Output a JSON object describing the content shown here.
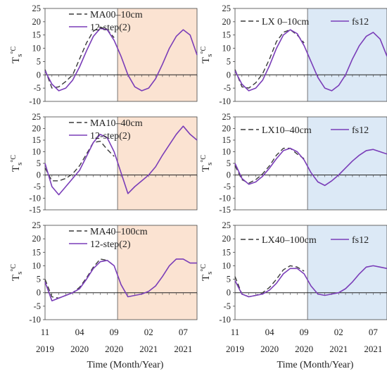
{
  "figure": {
    "xlabel": "Time (Month/Year)",
    "ylabel_main": "T",
    "ylabel_sub": "s",
    "ylabel_unit": "°C",
    "x_tick_months": [
      "11",
      "04",
      "09",
      "02",
      "07"
    ],
    "x_tick_years": [
      "2019",
      "2020",
      "2020",
      "2021",
      "2021"
    ]
  },
  "colors": {
    "observed": "#3a3a3a",
    "simulated": "#7a3db8",
    "shade_left": "#fbe3d2",
    "shade_right": "#dce9f6"
  },
  "chart_data": [
    {
      "type": "line",
      "panel": "left-1",
      "x_unit": "month_index_from_2019_11",
      "xlim": [
        0,
        22
      ],
      "ylim": [
        -10,
        25
      ],
      "yticks": [
        -10,
        -5,
        0,
        5,
        10,
        15,
        20,
        25
      ],
      "shade_from_x": 10.5,
      "series": [
        {
          "name": "MA00–10cm",
          "style": "dashed",
          "x": [
            0,
            1,
            2,
            3,
            4,
            5,
            6,
            7,
            8,
            9,
            10
          ],
          "y": [
            2,
            -5,
            -4.5,
            -2.5,
            0,
            6,
            12,
            16.5,
            18,
            17,
            14
          ]
        },
        {
          "name": "12-step(2)",
          "style": "solid",
          "x": [
            0,
            1,
            2,
            3,
            4,
            5,
            6,
            7,
            8,
            9,
            10,
            11,
            12,
            13,
            14,
            15,
            16,
            17,
            18,
            19,
            20,
            21,
            22
          ],
          "y": [
            1.5,
            -3.5,
            -6,
            -5,
            -2,
            3,
            9,
            14.5,
            17.5,
            17,
            13,
            7,
            0,
            -4.5,
            -6,
            -5,
            -1.5,
            4,
            10,
            14.5,
            17,
            15,
            7.5
          ]
        }
      ]
    },
    {
      "type": "line",
      "panel": "right-1",
      "x_unit": "month_index_from_2019_11",
      "xlim": [
        0,
        22
      ],
      "ylim": [
        -10,
        25
      ],
      "yticks": [
        -10,
        -5,
        0,
        5,
        10,
        15,
        20,
        25
      ],
      "shade_from_x": 10.5,
      "series": [
        {
          "name": "LX 0–10cm",
          "style": "dashed",
          "x": [
            0,
            1,
            2,
            3,
            4,
            5,
            6,
            7,
            8,
            9,
            10
          ],
          "y": [
            2,
            -4.5,
            -5,
            -3,
            0.5,
            6,
            12.5,
            16,
            17,
            15,
            12
          ]
        },
        {
          "name": "fs12",
          "style": "solid",
          "x": [
            0,
            1,
            2,
            3,
            4,
            5,
            6,
            7,
            8,
            9,
            10,
            11,
            12,
            13,
            14,
            15,
            16,
            17,
            18,
            19,
            20,
            21,
            22
          ],
          "y": [
            1.5,
            -3.5,
            -6,
            -5,
            -2,
            3.5,
            10,
            15,
            17,
            15.5,
            11,
            5,
            -1,
            -5,
            -6,
            -4,
            0,
            6,
            11,
            14.5,
            16,
            13.5,
            7
          ]
        }
      ]
    },
    {
      "type": "line",
      "panel": "left-2",
      "x_unit": "month_index_from_2019_11",
      "xlim": [
        0,
        22
      ],
      "ylim": [
        -15,
        25
      ],
      "yticks": [
        -15,
        -10,
        -5,
        0,
        5,
        10,
        15,
        20,
        25
      ],
      "shade_from_x": 10.5,
      "series": [
        {
          "name": "MA10–40cm",
          "style": "dashed",
          "x": [
            0,
            1,
            2,
            3,
            4,
            5,
            6,
            7,
            8,
            9,
            10
          ],
          "y": [
            3,
            -2.5,
            -2.5,
            -1.5,
            0.5,
            4,
            9,
            14,
            14.5,
            11,
            8
          ]
        },
        {
          "name": "12-step(2)",
          "style": "solid",
          "x": [
            0,
            1,
            2,
            3,
            4,
            5,
            6,
            7,
            8,
            9,
            10,
            11,
            12,
            13,
            14,
            15,
            16,
            17,
            18,
            19,
            20,
            21,
            22
          ],
          "y": [
            5,
            -5,
            -8.5,
            -5,
            -1.5,
            2,
            8,
            14,
            17.5,
            16,
            10,
            1,
            -8,
            -5,
            -2.5,
            0,
            3.5,
            8.5,
            13,
            17.5,
            21,
            17.5,
            15
          ]
        }
      ]
    },
    {
      "type": "line",
      "panel": "right-2",
      "x_unit": "month_index_from_2019_11",
      "xlim": [
        0,
        22
      ],
      "ylim": [
        -15,
        25
      ],
      "yticks": [
        -15,
        -10,
        -5,
        0,
        5,
        10,
        15,
        20,
        25
      ],
      "shade_from_x": 10.5,
      "series": [
        {
          "name": "LX10–40cm",
          "style": "dashed",
          "x": [
            0,
            1,
            2,
            3,
            4,
            5,
            6,
            7,
            8,
            9,
            10
          ],
          "y": [
            4,
            -2,
            -3.5,
            -2,
            0.5,
            4,
            8.5,
            11.5,
            11.5,
            9,
            7
          ]
        },
        {
          "name": "fs12",
          "style": "solid",
          "x": [
            0,
            1,
            2,
            3,
            4,
            5,
            6,
            7,
            8,
            9,
            10,
            11,
            12,
            13,
            14,
            15,
            16,
            17,
            18,
            19,
            20,
            21,
            22
          ],
          "y": [
            5,
            -1.5,
            -4,
            -3,
            -0.5,
            3,
            7,
            10.5,
            11.5,
            10,
            6.5,
            1,
            -3,
            -4.5,
            -2.5,
            0,
            3,
            6,
            8.5,
            10.5,
            11,
            10,
            9
          ]
        }
      ]
    },
    {
      "type": "line",
      "panel": "left-3",
      "x_unit": "month_index_from_2019_11",
      "xlim": [
        0,
        22
      ],
      "ylim": [
        -10,
        25
      ],
      "yticks": [
        -10,
        -5,
        0,
        5,
        10,
        15,
        20,
        25
      ],
      "shade_from_x": 10.5,
      "series": [
        {
          "name": "MA40–100cm",
          "style": "dashed",
          "x": [
            0,
            1,
            2,
            3,
            4,
            5,
            6,
            7,
            8,
            9,
            10
          ],
          "y": [
            5,
            -1.5,
            -2,
            -1,
            0,
            2,
            5.5,
            9.5,
            12.5,
            12,
            10
          ]
        },
        {
          "name": "12-step(2)",
          "style": "solid",
          "x": [
            0,
            1,
            2,
            3,
            4,
            5,
            6,
            7,
            8,
            9,
            10,
            11,
            12,
            13,
            14,
            15,
            16,
            17,
            18,
            19,
            20,
            21,
            22
          ],
          "y": [
            4,
            -3,
            -2,
            -1,
            0,
            1.5,
            5,
            9,
            11.5,
            12,
            10,
            3,
            -1.5,
            -1,
            -0.5,
            0.5,
            2.5,
            6,
            10,
            12.5,
            12.5,
            11,
            11
          ]
        }
      ]
    },
    {
      "type": "line",
      "panel": "right-3",
      "x_unit": "month_index_from_2019_11",
      "xlim": [
        0,
        22
      ],
      "ylim": [
        -10,
        25
      ],
      "yticks": [
        -10,
        -5,
        0,
        5,
        10,
        15,
        20,
        25
      ],
      "shade_from_x": 10.5,
      "series": [
        {
          "name": "LX40–100cm",
          "style": "dashed",
          "x": [
            0,
            1,
            2,
            3,
            4,
            5,
            6,
            7,
            8,
            9,
            10
          ],
          "y": [
            6,
            -0.5,
            -1.5,
            -1,
            0,
            2,
            5,
            8.5,
            10,
            9.5,
            8
          ]
        },
        {
          "name": "fs12",
          "style": "solid",
          "x": [
            0,
            1,
            2,
            3,
            4,
            5,
            6,
            7,
            8,
            9,
            10,
            11,
            12,
            13,
            14,
            15,
            16,
            17,
            18,
            19,
            20,
            21,
            22
          ],
          "y": [
            4.5,
            -0.5,
            -1.5,
            -1,
            -0.5,
            1,
            3.5,
            7,
            9,
            9,
            7,
            2.5,
            -0.5,
            -1,
            -0.5,
            0,
            1.5,
            4,
            7,
            9.5,
            10,
            9.5,
            9
          ]
        }
      ]
    }
  ]
}
